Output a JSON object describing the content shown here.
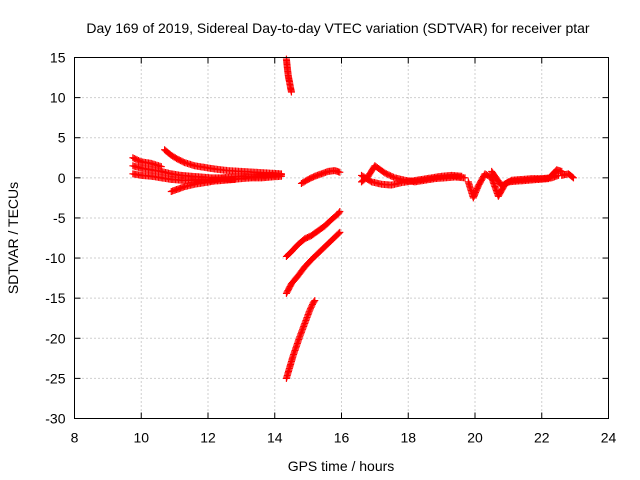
{
  "chart_data": {
    "type": "scatter",
    "title": "Day 169 of 2019, Sidereal Day-to-day VTEC variation (SDTVAR) for receiver ptar",
    "xlabel": "GPS time / hours",
    "ylabel": "SDTVAR / TECUs",
    "xlim": [
      8,
      24
    ],
    "ylim": [
      -30,
      15
    ],
    "xticks": [
      8,
      10,
      12,
      14,
      16,
      18,
      20,
      22,
      24
    ],
    "yticks": [
      -30,
      -25,
      -20,
      -15,
      -10,
      -5,
      0,
      5,
      10,
      15
    ],
    "grid": true,
    "marker": "+",
    "color": "#ff0000",
    "series": [
      {
        "segments": [
          {
            "x": [
              9.75,
              10.0,
              10.3,
              10.6,
              10.9,
              11.2,
              11.5,
              11.8,
              12.1,
              12.4,
              12.7,
              13.0,
              13.3,
              13.6,
              13.9,
              14.2
            ],
            "y": [
              1.5,
              1.2,
              1.0,
              0.8,
              0.5,
              0.3,
              0.2,
              0.1,
              0.0,
              0.0,
              0.1,
              0.2,
              0.1,
              0.2,
              0.3,
              0.4
            ]
          },
          {
            "x": [
              9.75,
              10.0,
              10.3,
              10.6,
              10.9,
              11.2,
              11.5,
              11.8,
              12.1,
              12.4,
              12.7,
              13.0,
              13.3,
              13.6,
              13.9,
              14.2
            ],
            "y": [
              0.5,
              0.3,
              0.2,
              0.0,
              -0.2,
              -0.3,
              -0.3,
              -0.2,
              -0.3,
              -0.1,
              -0.2,
              -0.1,
              0.0,
              0.0,
              0.1,
              0.2
            ]
          },
          {
            "x": [
              9.75,
              10.0,
              10.3,
              10.6
            ],
            "y": [
              2.5,
              2.0,
              1.8,
              1.4
            ]
          },
          {
            "x": [
              10.7,
              10.9,
              11.1,
              11.3,
              11.6,
              11.9,
              12.2,
              12.6,
              13.0,
              13.4,
              13.8,
              14.2
            ],
            "y": [
              3.5,
              2.8,
              2.3,
              1.9,
              1.5,
              1.3,
              1.1,
              0.9,
              0.8,
              0.7,
              0.6,
              0.5
            ]
          },
          {
            "x": [
              10.9,
              11.1,
              11.3,
              11.6,
              11.9,
              12.2,
              12.5,
              12.8
            ],
            "y": [
              -1.7,
              -1.4,
              -1.1,
              -0.8,
              -0.6,
              -0.4,
              -0.3,
              -0.2
            ]
          },
          {
            "x": [
              14.35,
              14.38,
              14.41,
              14.44,
              14.47,
              14.5
            ],
            "y": [
              14.8,
              13.6,
              12.6,
              12.0,
              11.3,
              10.7
            ]
          },
          {
            "x": [
              14.8,
              15.0,
              15.2,
              15.4,
              15.6,
              15.8,
              15.95
            ],
            "y": [
              -0.7,
              -0.2,
              0.2,
              0.5,
              0.8,
              0.9,
              0.7
            ]
          },
          {
            "x": [
              16.6,
              16.8,
              17.0,
              17.3,
              17.6,
              17.9,
              18.2,
              18.5,
              18.8,
              19.1,
              19.4,
              19.7
            ],
            "y": [
              -0.5,
              0.2,
              1.5,
              0.6,
              0.0,
              -0.3,
              -0.5,
              -0.3,
              -0.1,
              0.0,
              0.1,
              0.0
            ]
          },
          {
            "x": [
              16.6,
              16.9,
              17.2,
              17.5,
              17.8,
              18.1,
              18.4,
              18.7,
              19.0,
              19.3,
              19.6
            ],
            "y": [
              0.3,
              -0.5,
              -0.8,
              -0.9,
              -0.6,
              -0.4,
              -0.2,
              0.0,
              0.2,
              0.3,
              0.2
            ]
          },
          {
            "x": [
              19.8,
              19.95,
              20.1,
              20.3,
              20.5,
              20.7,
              20.9,
              21.1,
              21.4,
              21.7,
              22.0,
              22.3,
              22.5
            ],
            "y": [
              -0.5,
              -2.5,
              -1.0,
              0.5,
              0.0,
              -2.3,
              -0.8,
              -0.3,
              -0.2,
              -0.1,
              -0.1,
              0.0,
              0.3
            ]
          },
          {
            "x": [
              20.5,
              20.8,
              21.0,
              21.3,
              21.6,
              21.9,
              22.2,
              22.45,
              22.6
            ],
            "y": [
              0.8,
              -1.0,
              -0.5,
              -0.4,
              -0.3,
              -0.2,
              -0.1,
              1.0,
              0.8
            ]
          },
          {
            "x": [
              22.6,
              22.8,
              22.95
            ],
            "y": [
              0.3,
              0.5,
              0.0
            ]
          },
          {
            "x": [
              14.35,
              14.5,
              14.7,
              14.9,
              15.1,
              15.3,
              15.5,
              15.7,
              15.9,
              15.95
            ],
            "y": [
              -9.8,
              -9.2,
              -8.3,
              -7.6,
              -7.2,
              -6.6,
              -6.0,
              -5.2,
              -4.5,
              -4.2
            ]
          },
          {
            "x": [
              14.35,
              14.5,
              14.7,
              14.9,
              15.1,
              15.3,
              15.5,
              15.7,
              15.9,
              15.95
            ],
            "y": [
              -14.4,
              -13.2,
              -12.2,
              -11.1,
              -10.2,
              -9.4,
              -8.6,
              -7.8,
              -7.0,
              -6.8
            ]
          },
          {
            "x": [
              14.35,
              14.45,
              14.55,
              14.65,
              14.75,
              14.85,
              14.95,
              15.05,
              15.15,
              15.2
            ],
            "y": [
              -25.0,
              -23.6,
              -22.2,
              -21.0,
              -19.8,
              -18.7,
              -17.6,
              -16.5,
              -15.6,
              -15.3
            ]
          }
        ]
      }
    ]
  }
}
